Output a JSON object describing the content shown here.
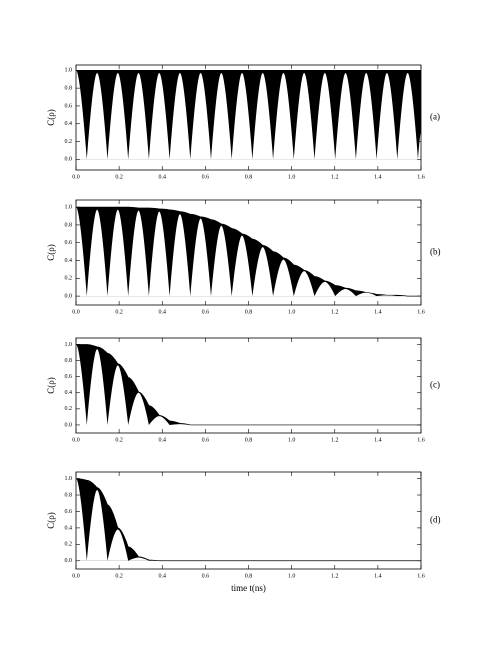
{
  "chart_data": [
    {
      "type": "area",
      "label": "(a)",
      "ylabel": "C(ρ)",
      "xlim": [
        0,
        1.6
      ],
      "ylim": [
        -0.12,
        1.06
      ],
      "xticks": [
        {
          "value": 0,
          "label": "0.0"
        },
        {
          "value": 0.2,
          "label": "0.2"
        },
        {
          "value": 0.4,
          "label": "0.4"
        },
        {
          "value": 0.6,
          "label": "0.6"
        },
        {
          "value": 0.8,
          "label": "0.8"
        },
        {
          "value": 1,
          "label": "1.0"
        },
        {
          "value": 1.2,
          "label": "1.2"
        },
        {
          "value": 1.4,
          "label": "1.4"
        },
        {
          "value": 1.6,
          "label": "1.6"
        }
      ],
      "yticks": [
        {
          "value": 0,
          "label": "0.0"
        },
        {
          "value": 0.2,
          "label": "0.2"
        },
        {
          "value": 0.4,
          "label": "0.4"
        },
        {
          "value": 0.6,
          "label": "0.6"
        },
        {
          "value": 0.8,
          "label": "0.8"
        },
        {
          "value": 1,
          "label": "1.0"
        }
      ],
      "x": [
        0,
        0.05,
        0.098,
        0.146,
        0.194,
        0.242,
        0.29,
        0.338,
        0.386,
        0.434,
        0.482,
        0.53,
        0.578,
        0.626,
        0.674,
        0.722,
        0.77,
        0.818,
        0.866,
        0.914,
        0.962,
        1.01,
        1.058,
        1.106,
        1.154,
        1.202,
        1.25,
        1.298,
        1.346,
        1.394,
        1.442,
        1.49,
        1.538,
        1.586,
        1.6
      ],
      "series": [
        {
          "color": "#000000",
          "values": [
            1,
            1,
            1,
            1,
            1,
            1,
            1,
            1,
            1,
            1,
            1,
            1,
            1,
            1,
            1,
            1,
            1,
            1,
            1,
            1,
            1,
            1,
            1,
            1,
            1,
            1,
            1,
            1,
            1,
            1,
            1,
            1,
            1,
            1,
            1
          ]
        },
        {
          "color": "#ffffff",
          "values": [
            1,
            0,
            0.97,
            0,
            0.97,
            0,
            0.97,
            0,
            0.97,
            0,
            0.97,
            0,
            0.97,
            0,
            0.97,
            0,
            0.97,
            0,
            0.97,
            0,
            0.97,
            0,
            0.97,
            0,
            0.97,
            0,
            0.97,
            0,
            0.97,
            0,
            0.97,
            0,
            0.97,
            0,
            0.3
          ]
        }
      ]
    },
    {
      "type": "area",
      "label": "(b)",
      "ylabel": "C(ρ)",
      "xlim": [
        0,
        1.6
      ],
      "ylim": [
        -0.1,
        1.08
      ],
      "xticks": [
        {
          "value": 0,
          "label": "0.0"
        },
        {
          "value": 0.2,
          "label": "0.2"
        },
        {
          "value": 0.4,
          "label": "0.4"
        },
        {
          "value": 0.6,
          "label": "0.6"
        },
        {
          "value": 0.8,
          "label": "0.8"
        },
        {
          "value": 1,
          "label": "1.0"
        },
        {
          "value": 1.2,
          "label": "1.2"
        },
        {
          "value": 1.4,
          "label": "1.4"
        },
        {
          "value": 1.6,
          "label": "1.6"
        }
      ],
      "yticks": [
        {
          "value": 0,
          "label": "0.0"
        },
        {
          "value": 0.2,
          "label": "0.2"
        },
        {
          "value": 0.4,
          "label": "0.4"
        },
        {
          "value": 0.6,
          "label": "0.6"
        },
        {
          "value": 0.8,
          "label": "0.8"
        },
        {
          "value": 1,
          "label": "1.0"
        }
      ],
      "x": [
        0,
        0.05,
        0.098,
        0.146,
        0.194,
        0.242,
        0.29,
        0.338,
        0.386,
        0.434,
        0.482,
        0.53,
        0.578,
        0.626,
        0.674,
        0.722,
        0.77,
        0.818,
        0.866,
        0.914,
        0.962,
        1.01,
        1.058,
        1.106,
        1.154,
        1.202,
        1.25,
        1.298,
        1.346,
        1.394,
        1.442,
        1.49,
        1.538,
        1.586,
        1.6
      ],
      "series": [
        {
          "color": "#000000",
          "values": [
            1,
            1,
            1,
            1,
            1,
            1,
            0.99,
            0.99,
            0.98,
            0.97,
            0.95,
            0.92,
            0.89,
            0.86,
            0.81,
            0.76,
            0.7,
            0.64,
            0.57,
            0.5,
            0.43,
            0.35,
            0.29,
            0.22,
            0.17,
            0.12,
            0.09,
            0.06,
            0.04,
            0.02,
            0.01,
            0.01,
            0,
            0,
            0
          ]
        },
        {
          "color": "#ffffff",
          "values": [
            1,
            0,
            0.97,
            0,
            0.97,
            0,
            0.96,
            0,
            0.95,
            0,
            0.92,
            0,
            0.87,
            0,
            0.79,
            0,
            0.68,
            0,
            0.55,
            0,
            0.41,
            0,
            0.28,
            0,
            0.16,
            0,
            0.08,
            0,
            0.04,
            0,
            0.01,
            0,
            0,
            0,
            0
          ]
        }
      ]
    },
    {
      "type": "area",
      "label": "(c)",
      "ylabel": "C(ρ)",
      "xlim": [
        0,
        1.6
      ],
      "ylim": [
        -0.1,
        1.08
      ],
      "xticks": [
        {
          "value": 0,
          "label": "0.0"
        },
        {
          "value": 0.2,
          "label": "0.2"
        },
        {
          "value": 0.4,
          "label": "0.4"
        },
        {
          "value": 0.6,
          "label": "0.6"
        },
        {
          "value": 0.8,
          "label": "0.8"
        },
        {
          "value": 1,
          "label": "1.0"
        },
        {
          "value": 1.2,
          "label": "1.2"
        },
        {
          "value": 1.4,
          "label": "1.4"
        },
        {
          "value": 1.6,
          "label": "1.6"
        }
      ],
      "yticks": [
        {
          "value": 0,
          "label": "0.0"
        },
        {
          "value": 0.2,
          "label": "0.2"
        },
        {
          "value": 0.4,
          "label": "0.4"
        },
        {
          "value": 0.6,
          "label": "0.6"
        },
        {
          "value": 0.8,
          "label": "0.8"
        },
        {
          "value": 1,
          "label": "1.0"
        }
      ],
      "x": [
        0,
        0.05,
        0.098,
        0.146,
        0.194,
        0.242,
        0.29,
        0.338,
        0.386,
        0.434,
        0.482,
        0.53,
        0.6,
        0.8,
        1,
        1.2,
        1.4,
        1.6
      ],
      "series": [
        {
          "color": "#000000",
          "values": [
            1,
            1,
            0.97,
            0.89,
            0.76,
            0.59,
            0.41,
            0.24,
            0.12,
            0.05,
            0.02,
            0,
            0,
            0,
            0,
            0,
            0,
            0
          ]
        },
        {
          "color": "#ffffff",
          "values": [
            1,
            0,
            0.94,
            0,
            0.74,
            0,
            0.4,
            0,
            0.11,
            0,
            0.01,
            0,
            0,
            0,
            0,
            0,
            0,
            0
          ]
        }
      ]
    },
    {
      "type": "area",
      "label": "(d)",
      "ylabel": "C(ρ)",
      "xlabel": "time t(ns)",
      "xlim": [
        0,
        1.6
      ],
      "ylim": [
        -0.1,
        1.08
      ],
      "xticks": [
        {
          "value": 0,
          "label": "0.0"
        },
        {
          "value": 0.2,
          "label": "0.2"
        },
        {
          "value": 0.4,
          "label": "0.4"
        },
        {
          "value": 0.6,
          "label": "0.6"
        },
        {
          "value": 0.8,
          "label": "0.8"
        },
        {
          "value": 1,
          "label": "1.0"
        },
        {
          "value": 1.2,
          "label": "1.2"
        },
        {
          "value": 1.4,
          "label": "1.4"
        },
        {
          "value": 1.6,
          "label": "1.6"
        }
      ],
      "yticks": [
        {
          "value": 0,
          "label": "0.0"
        },
        {
          "value": 0.2,
          "label": "0.2"
        },
        {
          "value": 0.4,
          "label": "0.4"
        },
        {
          "value": 0.6,
          "label": "0.6"
        },
        {
          "value": 0.8,
          "label": "0.8"
        },
        {
          "value": 1,
          "label": "1.0"
        }
      ],
      "x": [
        0,
        0.05,
        0.098,
        0.146,
        0.194,
        0.242,
        0.29,
        0.338,
        0.386,
        0.5,
        0.8,
        1,
        1.2,
        1.4,
        1.6
      ],
      "series": [
        {
          "color": "#000000",
          "values": [
            1,
            0.98,
            0.89,
            0.68,
            0.4,
            0.17,
            0.05,
            0.01,
            0,
            0,
            0,
            0,
            0,
            0,
            0
          ]
        },
        {
          "color": "#ffffff",
          "values": [
            1,
            0,
            0.86,
            0,
            0.38,
            0,
            0.04,
            0,
            0,
            0,
            0,
            0,
            0,
            0,
            0
          ]
        }
      ]
    }
  ]
}
